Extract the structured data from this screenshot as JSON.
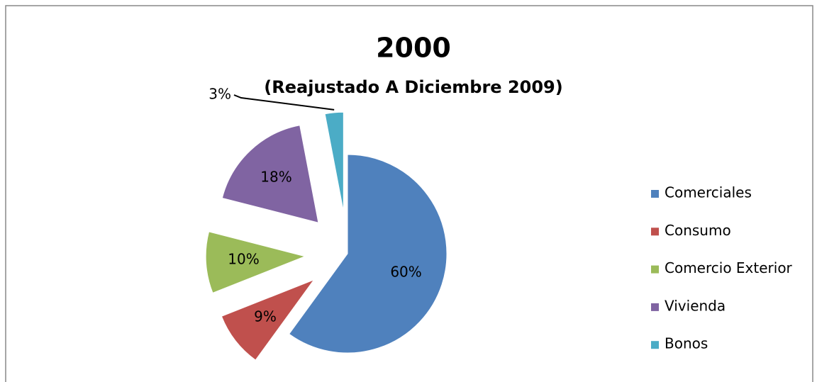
{
  "chart_data": {
    "type": "pie",
    "title": "2000",
    "subtitle": "(Reajustado A Diciembre 2009)",
    "categories": [
      "Comerciales",
      "Consumo",
      "Comercio Exterior",
      "Vivienda",
      "Bonos"
    ],
    "values": [
      60,
      9,
      10,
      18,
      3
    ],
    "value_labels": [
      "60%",
      "9%",
      "10%",
      "18%",
      "3%"
    ],
    "colors": [
      "#4f81bd",
      "#c0504d",
      "#9bbb59",
      "#8064a2",
      "#4bacc6"
    ],
    "legend": "right"
  }
}
